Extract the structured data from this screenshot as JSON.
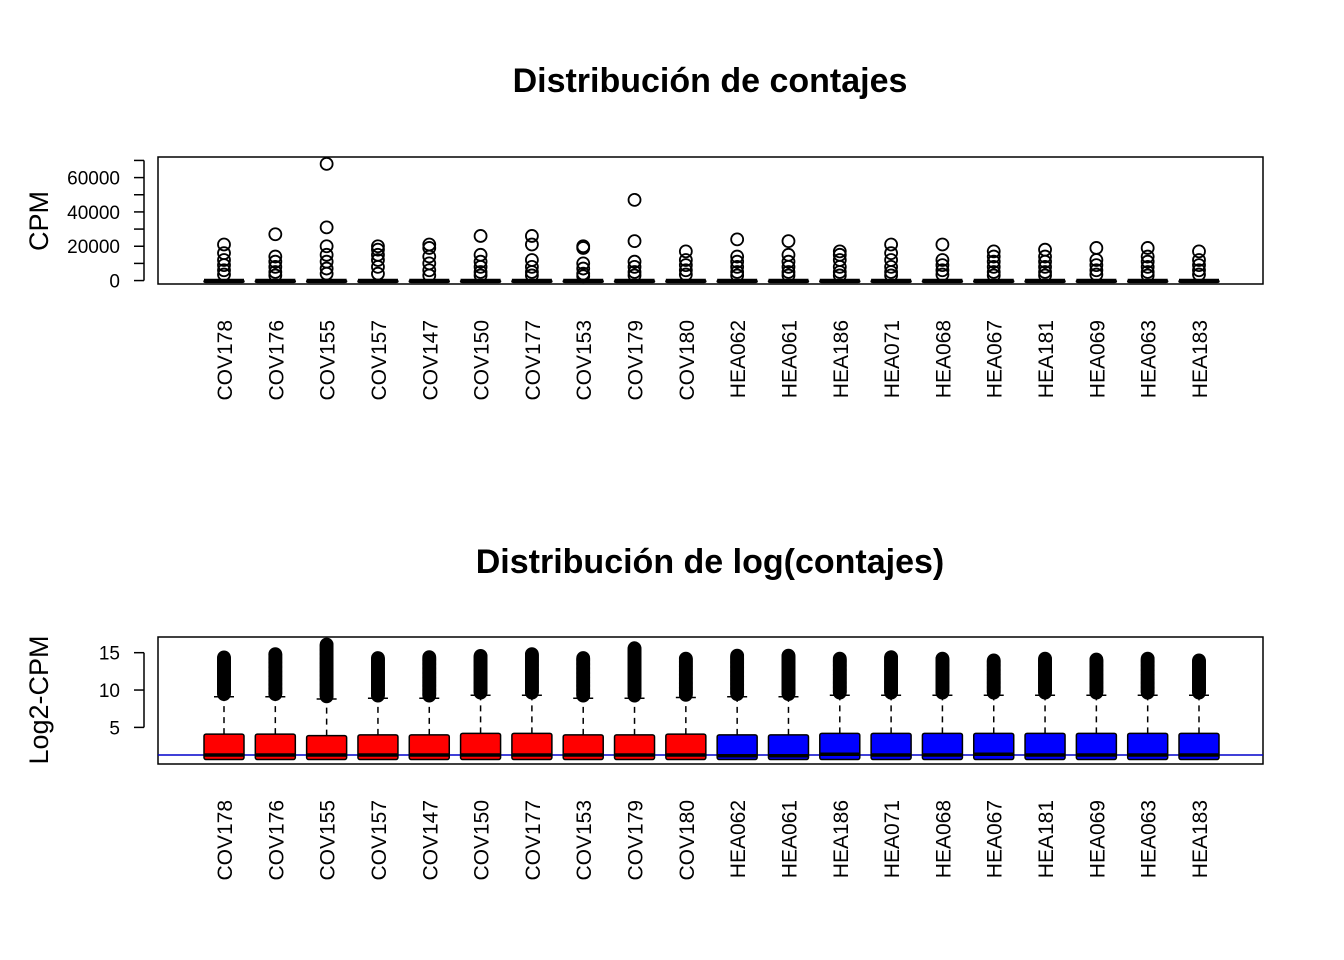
{
  "colors": {
    "covid": "#ff0000",
    "healthy": "#0000ff",
    "ref_line": "#0000cc",
    "ink": "#000000"
  },
  "chart_data": [
    {
      "type": "boxplot",
      "title": "Distribución de contajes",
      "ylabel": "CPM",
      "xlabel": "",
      "ylim": [
        -2000,
        72000
      ],
      "yticks": [
        0,
        10000,
        20000,
        30000,
        40000,
        50000,
        60000,
        70000
      ],
      "ytick_labels": [
        "0",
        "",
        "20000",
        "",
        "40000",
        "",
        "60000",
        ""
      ],
      "box_fill": "none",
      "reference_line": null,
      "categories": [
        "COV178",
        "COV176",
        "COV155",
        "COV157",
        "COV147",
        "COV150",
        "COV177",
        "COV153",
        "COV179",
        "COV180",
        "HEA062",
        "HEA061",
        "HEA186",
        "HEA071",
        "HEA068",
        "HEA067",
        "HEA181",
        "HEA069",
        "HEA063",
        "HEA183"
      ],
      "group": [
        "COV",
        "COV",
        "COV",
        "COV",
        "COV",
        "COV",
        "COV",
        "COV",
        "COV",
        "COV",
        "HEA",
        "HEA",
        "HEA",
        "HEA",
        "HEA",
        "HEA",
        "HEA",
        "HEA",
        "HEA",
        "HEA"
      ],
      "boxes": [
        {
          "q1": 0,
          "median": 20,
          "q3": 80,
          "whisker_low": 0,
          "whisker_high": 200,
          "outlier_max": 21000,
          "outliers": [
            21000,
            16000,
            12000,
            9000,
            6000,
            3500
          ]
        },
        {
          "q1": 0,
          "median": 20,
          "q3": 80,
          "whisker_low": 0,
          "whisker_high": 200,
          "outlier_max": 27000,
          "outliers": [
            27000,
            14000,
            11000,
            8000,
            5000,
            3000
          ]
        },
        {
          "q1": 0,
          "median": 20,
          "q3": 80,
          "whisker_low": 0,
          "whisker_high": 200,
          "outlier_max": 68000,
          "outliers": [
            68000,
            31000,
            20000,
            15000,
            11000,
            7000,
            4000
          ]
        },
        {
          "q1": 0,
          "median": 20,
          "q3": 80,
          "whisker_low": 0,
          "whisker_high": 200,
          "outlier_max": 20000,
          "outliers": [
            20000,
            18000,
            15000,
            12000,
            8000,
            4000
          ]
        },
        {
          "q1": 0,
          "median": 20,
          "q3": 80,
          "whisker_low": 0,
          "whisker_high": 200,
          "outlier_max": 21000,
          "outliers": [
            21000,
            19000,
            14000,
            10000,
            6000,
            3000
          ]
        },
        {
          "q1": 0,
          "median": 20,
          "q3": 80,
          "whisker_low": 0,
          "whisker_high": 200,
          "outlier_max": 26000,
          "outliers": [
            26000,
            15000,
            11000,
            8000,
            5000,
            3000
          ]
        },
        {
          "q1": 0,
          "median": 20,
          "q3": 80,
          "whisker_low": 0,
          "whisker_high": 200,
          "outlier_max": 26000,
          "outliers": [
            26000,
            21000,
            12000,
            8000,
            5000,
            3000
          ]
        },
        {
          "q1": 0,
          "median": 20,
          "q3": 80,
          "whisker_low": 0,
          "whisker_high": 200,
          "outlier_max": 20000,
          "outliers": [
            20000,
            19000,
            10000,
            7000,
            4000,
            2500
          ]
        },
        {
          "q1": 0,
          "median": 20,
          "q3": 80,
          "whisker_low": 0,
          "whisker_high": 200,
          "outlier_max": 47000,
          "outliers": [
            47000,
            23000,
            11000,
            8000,
            5000,
            3000
          ]
        },
        {
          "q1": 0,
          "median": 20,
          "q3": 80,
          "whisker_low": 0,
          "whisker_high": 200,
          "outlier_max": 17000,
          "outliers": [
            17000,
            12000,
            9000,
            6000,
            3500
          ]
        },
        {
          "q1": 0,
          "median": 20,
          "q3": 80,
          "whisker_low": 0,
          "whisker_high": 200,
          "outlier_max": 24000,
          "outliers": [
            24000,
            14000,
            11000,
            8000,
            5000,
            3000
          ]
        },
        {
          "q1": 0,
          "median": 20,
          "q3": 80,
          "whisker_low": 0,
          "whisker_high": 200,
          "outlier_max": 23000,
          "outliers": [
            23000,
            15000,
            11000,
            8000,
            5000,
            3000
          ]
        },
        {
          "q1": 0,
          "median": 20,
          "q3": 80,
          "whisker_low": 0,
          "whisker_high": 200,
          "outlier_max": 17000,
          "outliers": [
            17000,
            15000,
            12000,
            8000,
            5000,
            3000
          ]
        },
        {
          "q1": 0,
          "median": 20,
          "q3": 80,
          "whisker_low": 0,
          "whisker_high": 200,
          "outlier_max": 21000,
          "outliers": [
            21000,
            16000,
            12000,
            8000,
            5000,
            3000
          ]
        },
        {
          "q1": 0,
          "median": 20,
          "q3": 80,
          "whisker_low": 0,
          "whisker_high": 200,
          "outlier_max": 21000,
          "outliers": [
            21000,
            12000,
            9000,
            6000,
            3500
          ]
        },
        {
          "q1": 0,
          "median": 20,
          "q3": 80,
          "whisker_low": 0,
          "whisker_high": 200,
          "outlier_max": 17000,
          "outliers": [
            17000,
            14000,
            11000,
            8000,
            5000,
            3000
          ]
        },
        {
          "q1": 0,
          "median": 20,
          "q3": 80,
          "whisker_low": 0,
          "whisker_high": 200,
          "outlier_max": 18000,
          "outliers": [
            18000,
            14000,
            11000,
            8000,
            5000,
            3000
          ]
        },
        {
          "q1": 0,
          "median": 20,
          "q3": 80,
          "whisker_low": 0,
          "whisker_high": 200,
          "outlier_max": 19000,
          "outliers": [
            19000,
            12000,
            9000,
            6000,
            3500
          ]
        },
        {
          "q1": 0,
          "median": 20,
          "q3": 80,
          "whisker_low": 0,
          "whisker_high": 200,
          "outlier_max": 19000,
          "outliers": [
            19000,
            14000,
            11000,
            8000,
            5000,
            3000
          ]
        },
        {
          "q1": 0,
          "median": 20,
          "q3": 80,
          "whisker_low": 0,
          "whisker_high": 200,
          "outlier_max": 17000,
          "outliers": [
            17000,
            12000,
            9000,
            6000,
            3500
          ]
        }
      ]
    },
    {
      "type": "boxplot",
      "title": "Distribución de log(contajes)",
      "ylabel": "Log2-CPM",
      "xlabel": "",
      "ylim": [
        0.1,
        17.1
      ],
      "yticks": [
        5,
        10,
        15
      ],
      "ytick_labels": [
        "5",
        "10",
        "15"
      ],
      "box_fill": "group",
      "reference_line": 1.3,
      "categories": [
        "COV178",
        "COV176",
        "COV155",
        "COV157",
        "COV147",
        "COV150",
        "COV177",
        "COV153",
        "COV179",
        "COV180",
        "HEA062",
        "HEA061",
        "HEA186",
        "HEA071",
        "HEA068",
        "HEA067",
        "HEA181",
        "HEA069",
        "HEA063",
        "HEA183"
      ],
      "group": [
        "COV",
        "COV",
        "COV",
        "COV",
        "COV",
        "COV",
        "COV",
        "COV",
        "COV",
        "COV",
        "HEA",
        "HEA",
        "HEA",
        "HEA",
        "HEA",
        "HEA",
        "HEA",
        "HEA",
        "HEA",
        "HEA"
      ],
      "boxes": [
        {
          "q1": 0.7,
          "median": 1.3,
          "q3": 4.1,
          "whisker_low": 0.7,
          "whisker_high": 9.1,
          "outlier_max": 14.4
        },
        {
          "q1": 0.7,
          "median": 1.3,
          "q3": 4.1,
          "whisker_low": 0.7,
          "whisker_high": 9.1,
          "outlier_max": 14.8
        },
        {
          "q1": 0.7,
          "median": 1.3,
          "q3": 3.9,
          "whisker_low": 0.7,
          "whisker_high": 8.8,
          "outlier_max": 16.1
        },
        {
          "q1": 0.7,
          "median": 1.3,
          "q3": 4.0,
          "whisker_low": 0.7,
          "whisker_high": 8.9,
          "outlier_max": 14.3
        },
        {
          "q1": 0.7,
          "median": 1.3,
          "q3": 4.0,
          "whisker_low": 0.7,
          "whisker_high": 8.9,
          "outlier_max": 14.4
        },
        {
          "q1": 0.7,
          "median": 1.3,
          "q3": 4.2,
          "whisker_low": 0.7,
          "whisker_high": 9.3,
          "outlier_max": 14.6
        },
        {
          "q1": 0.7,
          "median": 1.3,
          "q3": 4.2,
          "whisker_low": 0.7,
          "whisker_high": 9.3,
          "outlier_max": 14.8
        },
        {
          "q1": 0.7,
          "median": 1.3,
          "q3": 4.0,
          "whisker_low": 0.7,
          "whisker_high": 8.9,
          "outlier_max": 14.3
        },
        {
          "q1": 0.7,
          "median": 1.3,
          "q3": 4.0,
          "whisker_low": 0.7,
          "whisker_high": 8.9,
          "outlier_max": 15.6
        },
        {
          "q1": 0.7,
          "median": 1.3,
          "q3": 4.1,
          "whisker_low": 0.7,
          "whisker_high": 9.0,
          "outlier_max": 14.2
        },
        {
          "q1": 0.7,
          "median": 1.2,
          "q3": 4.0,
          "whisker_low": 0.7,
          "whisker_high": 9.1,
          "outlier_max": 14.6
        },
        {
          "q1": 0.7,
          "median": 1.2,
          "q3": 4.0,
          "whisker_low": 0.7,
          "whisker_high": 9.1,
          "outlier_max": 14.6
        },
        {
          "q1": 0.7,
          "median": 1.4,
          "q3": 4.2,
          "whisker_low": 0.7,
          "whisker_high": 9.3,
          "outlier_max": 14.2
        },
        {
          "q1": 0.7,
          "median": 1.3,
          "q3": 4.2,
          "whisker_low": 0.7,
          "whisker_high": 9.3,
          "outlier_max": 14.4
        },
        {
          "q1": 0.7,
          "median": 1.3,
          "q3": 4.2,
          "whisker_low": 0.7,
          "whisker_high": 9.3,
          "outlier_max": 14.2
        },
        {
          "q1": 0.7,
          "median": 1.4,
          "q3": 4.2,
          "whisker_low": 0.7,
          "whisker_high": 9.3,
          "outlier_max": 14.0
        },
        {
          "q1": 0.7,
          "median": 1.3,
          "q3": 4.2,
          "whisker_low": 0.7,
          "whisker_high": 9.3,
          "outlier_max": 14.2
        },
        {
          "q1": 0.7,
          "median": 1.3,
          "q3": 4.2,
          "whisker_low": 0.7,
          "whisker_high": 9.3,
          "outlier_max": 14.1
        },
        {
          "q1": 0.7,
          "median": 1.3,
          "q3": 4.2,
          "whisker_low": 0.7,
          "whisker_high": 9.3,
          "outlier_max": 14.2
        },
        {
          "q1": 0.7,
          "median": 1.3,
          "q3": 4.2,
          "whisker_low": 0.7,
          "whisker_high": 9.3,
          "outlier_max": 14.0
        }
      ]
    }
  ]
}
